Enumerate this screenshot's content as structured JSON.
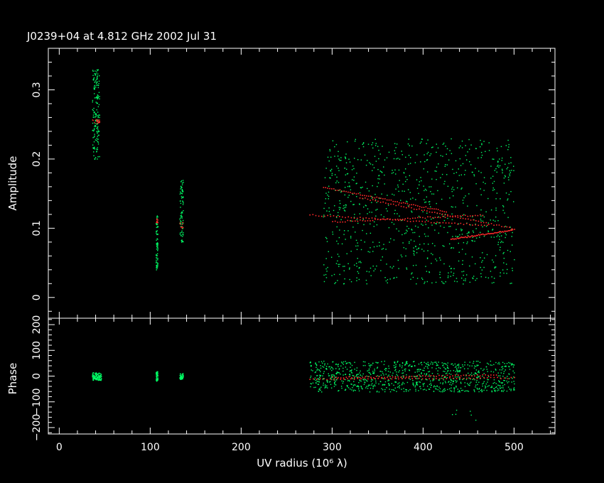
{
  "chart_data": [
    {
      "type": "scatter",
      "title": "J0239+04 at 4.812 GHz 2002 Jul 31",
      "xlabel": "UV radius  (10⁶ λ)",
      "ylabel": "Amplitude",
      "xlim": [
        -12,
        545
      ],
      "ylim": [
        -0.03,
        0.36
      ],
      "yticks": [
        "0",
        "0.1",
        "0.2",
        "0.3"
      ],
      "ytick_values": [
        0,
        0.1,
        0.2,
        0.3
      ],
      "series": [
        {
          "color": "#00ff66",
          "clusters": [
            {
              "x": [
                36,
                44
              ],
              "y": [
                0.2,
                0.33
              ],
              "n": 160
            },
            {
              "x": [
                106,
                108
              ],
              "y": [
                0.04,
                0.12
              ],
              "n": 70
            },
            {
              "x": [
                132,
                136
              ],
              "y": [
                0.08,
                0.17
              ],
              "n": 80
            },
            {
              "x": [
                290,
                500
              ],
              "y": [
                0.02,
                0.23
              ],
              "n": 900
            }
          ]
        },
        {
          "color": "#ff2a2a",
          "clusters": [
            {
              "x": [
                36,
                44
              ],
              "y": [
                0.252,
                0.258
              ],
              "n": 25
            },
            {
              "x": [
                106,
                108
              ],
              "y": [
                0.108,
                0.116
              ],
              "n": 12
            },
            {
              "x": [
                132,
                136
              ],
              "y": [
                0.1,
                0.11
              ],
              "n": 10
            }
          ],
          "tracks": [
            {
              "x": [
                290,
                425
              ],
              "y": [
                0.16,
                0.125
              ]
            },
            {
              "x": [
                275,
                470
              ],
              "y": [
                0.12,
                0.105
              ]
            },
            {
              "x": [
                330,
                500
              ],
              "y": [
                0.145,
                0.1
              ]
            },
            {
              "x": [
                300,
                465
              ],
              "y": [
                0.11,
                0.12
              ]
            },
            {
              "x": [
                430,
                498
              ],
              "y": [
                0.085,
                0.098
              ]
            }
          ]
        }
      ]
    },
    {
      "type": "scatter",
      "xlabel": "UV radius  (10⁶ λ)",
      "ylabel": "Phase",
      "xlim": [
        -12,
        545
      ],
      "ylim": [
        -225,
        225
      ],
      "xticks": [
        "0",
        "100",
        "200",
        "300",
        "400",
        "500"
      ],
      "xtick_values": [
        0,
        100,
        200,
        300,
        400,
        500
      ],
      "yticks": [
        "−200",
        "−100",
        "0",
        "100",
        "200"
      ],
      "ytick_values": [
        -200,
        -100,
        0,
        100,
        200
      ],
      "series": [
        {
          "color": "#00ff66",
          "clusters": [
            {
              "x": [
                36,
                46
              ],
              "y": [
                -15,
                15
              ],
              "n": 120
            },
            {
              "x": [
                106,
                108
              ],
              "y": [
                -20,
                20
              ],
              "n": 50
            },
            {
              "x": [
                132,
                136
              ],
              "y": [
                -12,
                12
              ],
              "n": 50
            },
            {
              "x": [
                275,
                500
              ],
              "y": [
                -60,
                60
              ],
              "n": 900
            },
            {
              "x": [
                425,
                460
              ],
              "y": [
                -170,
                -120
              ],
              "n": 6
            }
          ]
        },
        {
          "color": "#ff2a2a",
          "tracks": [
            {
              "x": [
                275,
                500
              ],
              "y": [
                -10,
                -5
              ]
            },
            {
              "x": [
                300,
                480
              ],
              "y": [
                -4,
                6
              ]
            }
          ]
        }
      ]
    }
  ]
}
